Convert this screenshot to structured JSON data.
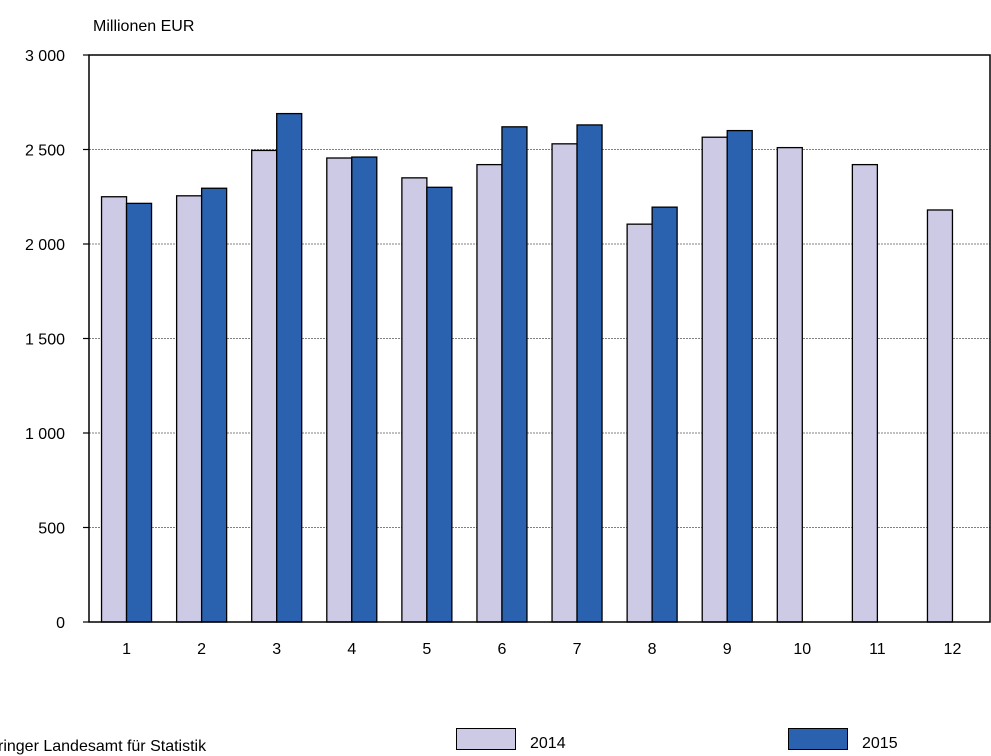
{
  "chart_data": {
    "type": "bar",
    "unit_label": "Millionen EUR",
    "categories": [
      "1",
      "2",
      "3",
      "4",
      "5",
      "6",
      "7",
      "8",
      "9",
      "10",
      "11",
      "12"
    ],
    "series": [
      {
        "name": "2014",
        "color": "#cdcae6",
        "values": [
          2250,
          2255,
          2495,
          2455,
          2350,
          2420,
          2530,
          2105,
          2565,
          2510,
          2420,
          2180
        ]
      },
      {
        "name": "2015",
        "color": "#2a62b0",
        "values": [
          2215,
          2295,
          2690,
          2460,
          2300,
          2620,
          2630,
          2195,
          2600,
          null,
          null,
          null
        ]
      }
    ],
    "ylim": [
      0,
      3000
    ],
    "yticks": [
      0,
      500,
      1000,
      1500,
      2000,
      2500,
      3000
    ],
    "ytick_labels": [
      "0",
      "500",
      "1 000",
      "1 500",
      "2 000",
      "2 500",
      "3 000"
    ],
    "grid": true,
    "legend_position": "bottom"
  },
  "source": "ringer Landesamt für Statistik"
}
